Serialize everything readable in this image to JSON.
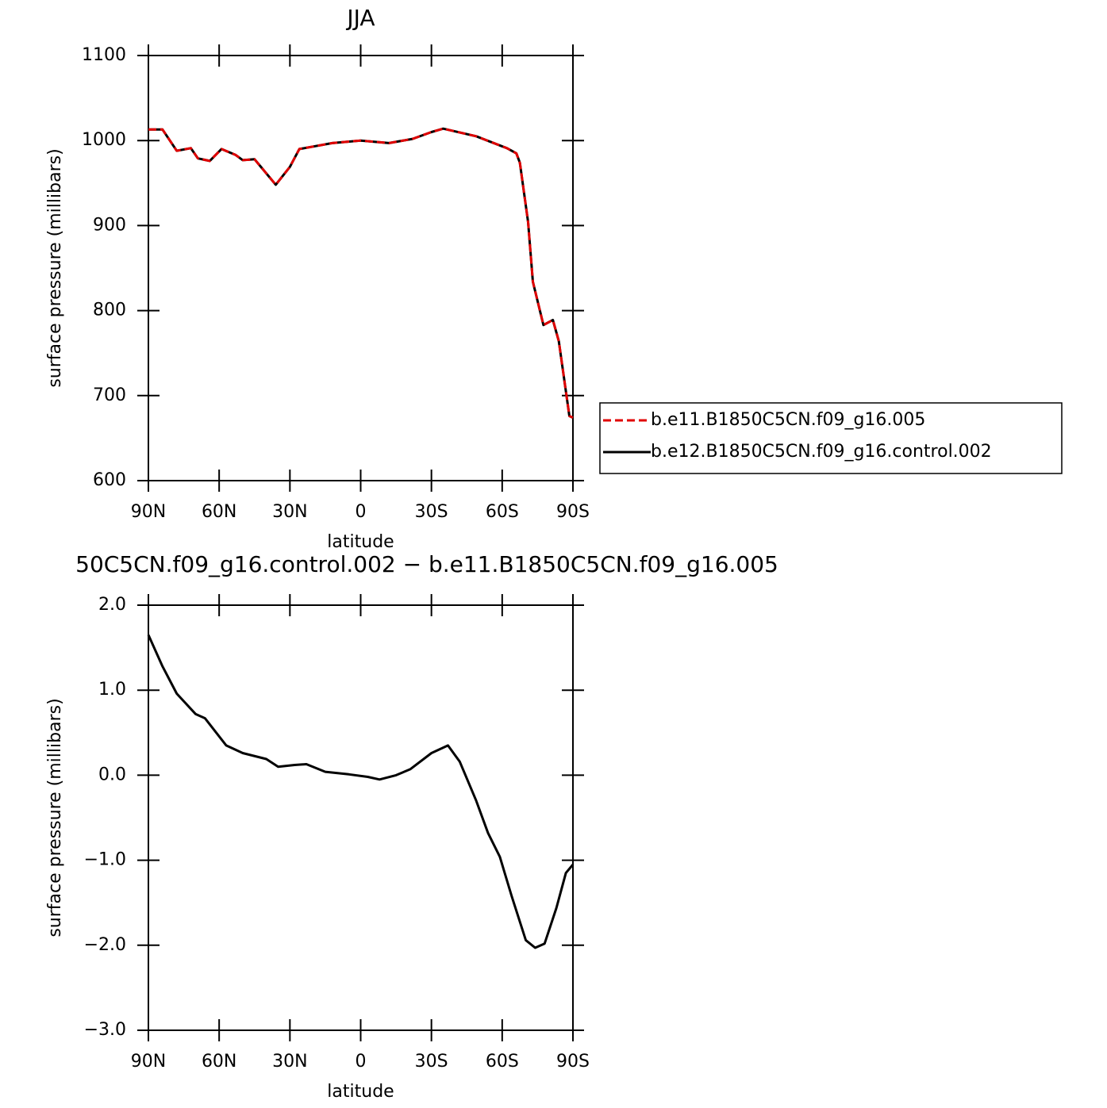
{
  "chart_data": [
    {
      "type": "line",
      "title": "JJA",
      "xlabel": "latitude",
      "ylabel": "surface pressure (millibars)",
      "x": [
        90,
        84,
        78,
        72,
        69,
        64,
        59,
        53,
        50,
        45,
        42,
        36,
        30,
        26,
        20,
        12,
        0,
        -12,
        -22,
        -30,
        -35,
        -49,
        -62,
        -66,
        -67.5,
        -71,
        -73,
        -77.5,
        -81.5,
        -84,
        -88.5,
        -90
      ],
      "series": [
        {
          "name": "b.e11.B1850C5CN.f09_g16.005",
          "color": "#e00000",
          "dashed": true,
          "values": [
            1013,
            1013,
            988,
            991,
            979,
            976,
            990,
            983,
            977,
            978,
            968,
            948,
            969,
            990,
            993,
            997,
            1000,
            997,
            1002,
            1010,
            1014,
            1005,
            991,
            985,
            974,
            904,
            834,
            783,
            789,
            764,
            676,
            674
          ]
        },
        {
          "name": "b.e12.B1850C5CN.f09_g16.control.002",
          "color": "#000000",
          "dashed": false,
          "values": [
            1013,
            1013,
            988,
            991,
            979,
            976,
            990,
            983,
            977,
            978,
            968,
            948,
            969,
            990,
            993,
            997,
            1000,
            997,
            1002,
            1010,
            1014,
            1005,
            991,
            985,
            974,
            904,
            834,
            783,
            789,
            764,
            676,
            674
          ]
        }
      ],
      "xlim": [
        90,
        -90
      ],
      "xticks": [
        {
          "value": 90,
          "label": "90N"
        },
        {
          "value": 60,
          "label": "60N"
        },
        {
          "value": 30,
          "label": "30N"
        },
        0,
        {
          "value": -30,
          "label": "30S"
        },
        {
          "value": -60,
          "label": "60S"
        },
        {
          "value": -90,
          "label": "90S"
        }
      ],
      "ylim": [
        600,
        1100
      ],
      "yticks": [
        600,
        700,
        800,
        900,
        1000,
        1100
      ],
      "legend": "right"
    },
    {
      "type": "line",
      "title": "50C5CN.f09_g16.control.002 − b.e11.B1850C5CN.f09_g16.005",
      "xlabel": "latitude",
      "ylabel": "surface pressure (millibars)",
      "x": [
        90,
        84,
        78,
        70,
        66,
        57,
        50,
        40,
        35,
        28,
        23,
        15,
        5,
        -3,
        -8,
        -15,
        -21,
        -30,
        -37,
        -42,
        -49,
        -54,
        -59,
        -64,
        -70,
        -74,
        -78,
        -83,
        -87,
        -90
      ],
      "series": [
        {
          "color": "#000000",
          "dashed": false,
          "values": [
            1.65,
            1.28,
            0.96,
            0.72,
            0.67,
            0.35,
            0.26,
            0.19,
            0.1,
            0.12,
            0.13,
            0.04,
            0.01,
            -0.02,
            -0.05,
            0.0,
            0.07,
            0.26,
            0.35,
            0.16,
            -0.3,
            -0.68,
            -0.96,
            -1.42,
            -1.94,
            -2.03,
            -1.98,
            -1.56,
            -1.15,
            -1.05
          ]
        }
      ],
      "xlim": [
        90,
        -90
      ],
      "xticks": [
        {
          "value": 90,
          "label": "90N"
        },
        {
          "value": 60,
          "label": "60N"
        },
        {
          "value": 30,
          "label": "30N"
        },
        0,
        {
          "value": -30,
          "label": "30S"
        },
        {
          "value": -60,
          "label": "60S"
        },
        {
          "value": -90,
          "label": "90S"
        }
      ],
      "ylim": [
        -3,
        2
      ],
      "yticks": [
        {
          "value": -3,
          "label": "−3.0"
        },
        {
          "value": -2,
          "label": "−2.0"
        },
        {
          "value": -1,
          "label": "−1.0"
        },
        {
          "value": 0,
          "label": "0.0"
        },
        {
          "value": 1,
          "label": "1.0"
        },
        {
          "value": 2,
          "label": "2.0"
        }
      ]
    }
  ]
}
